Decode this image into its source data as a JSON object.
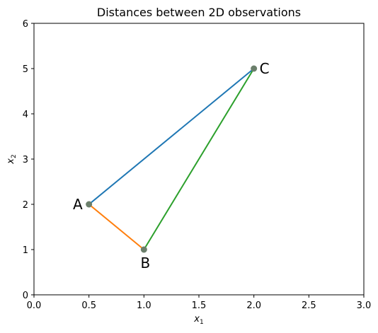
{
  "chart_data": {
    "type": "scatter",
    "title": "Distances between 2D observations",
    "xlabel": {
      "base": "x",
      "sub": "1"
    },
    "ylabel": {
      "base": "x",
      "sub": "2"
    },
    "xlim": [
      0,
      3
    ],
    "ylim": [
      0,
      6
    ],
    "xticks": [
      "0.0",
      "0.5",
      "1.0",
      "1.5",
      "2.0",
      "2.5",
      "3.0"
    ],
    "yticks": [
      "0",
      "1",
      "2",
      "3",
      "4",
      "5",
      "6"
    ],
    "grid": false,
    "points": [
      {
        "label": "A",
        "x": 0.5,
        "y": 2,
        "label_side": "left"
      },
      {
        "label": "B",
        "x": 1.0,
        "y": 1,
        "label_side": "below"
      },
      {
        "label": "C",
        "x": 2.0,
        "y": 5,
        "label_side": "right"
      }
    ],
    "segments": [
      {
        "from": "A",
        "to": "C",
        "color": "#1f77b4"
      },
      {
        "from": "A",
        "to": "B",
        "color": "#ff7f0e"
      },
      {
        "from": "B",
        "to": "C",
        "color": "#2ca02c"
      }
    ],
    "point_color": "#6b7f6b"
  }
}
